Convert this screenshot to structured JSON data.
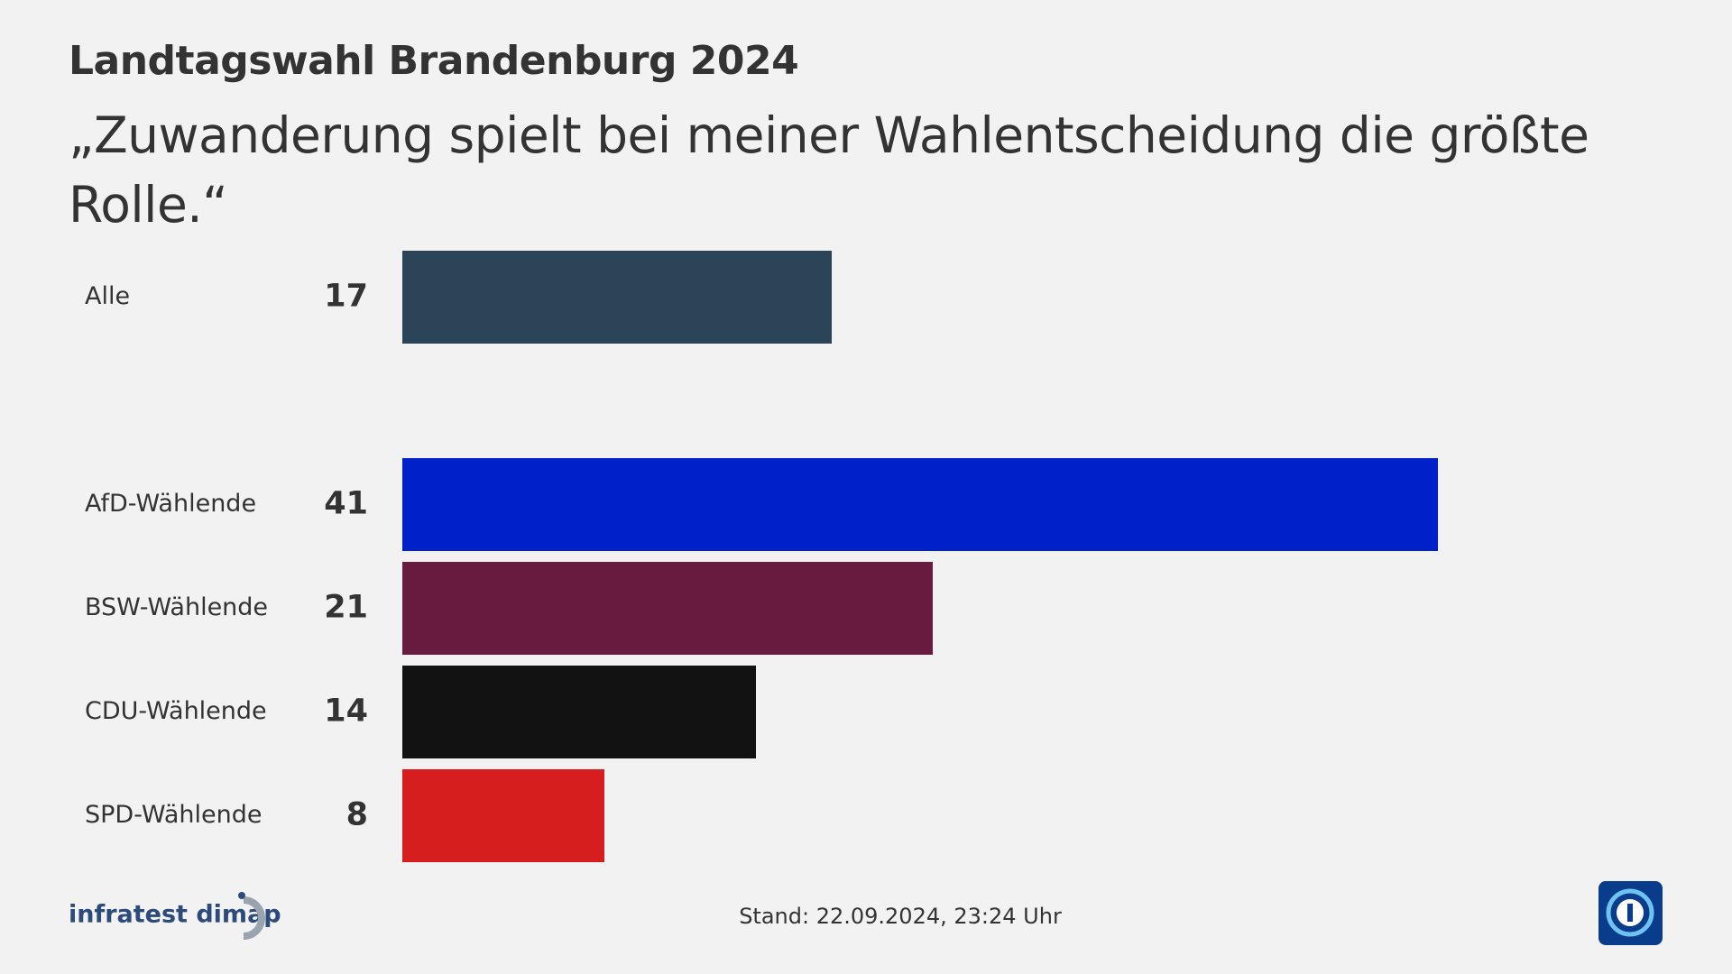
{
  "chart_data": {
    "type": "bar",
    "orientation": "horizontal",
    "title": "Landtagswahl Brandenburg 2024",
    "subtitle": "„Zuwanderung spielt bei meiner Wahlentscheidung die größte Rolle.“",
    "categories": [
      "Alle",
      "AfD-Wählende",
      "BSW-Wählende",
      "CDU-Wählende",
      "SPD-Wählende"
    ],
    "values": [
      17,
      41,
      21,
      14,
      8
    ],
    "colors": [
      "#2c4457",
      "#0021c9",
      "#691a3f",
      "#121212",
      "#d71e1e"
    ],
    "source": "infratest dimap",
    "footnote": "Stand:  22.09.2024, 23:24 Uhr"
  }
}
